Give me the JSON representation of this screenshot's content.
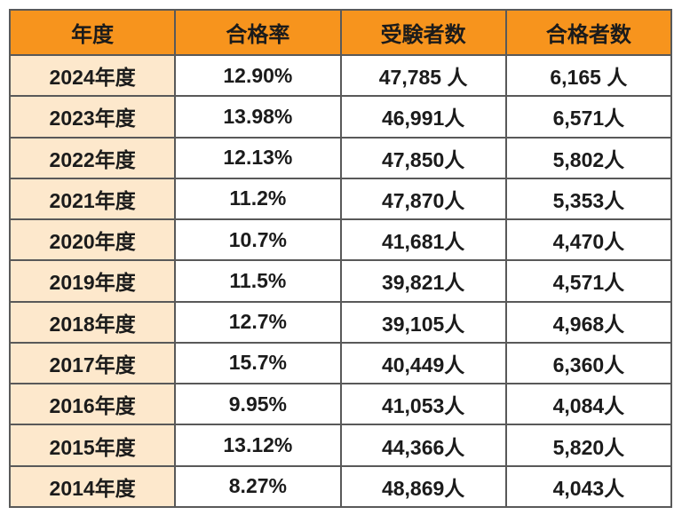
{
  "table": {
    "headers": [
      "年度",
      "合格率",
      "受験者数",
      "合格者数"
    ],
    "rows": [
      [
        "2024年度",
        "12.90%",
        "47,785 人",
        "6,165 人"
      ],
      [
        "2023年度",
        "13.98%",
        "46,991人",
        "6,571人"
      ],
      [
        "2022年度",
        "12.13%",
        "47,850人",
        "5,802人"
      ],
      [
        "2021年度",
        "11.2%",
        "47,870人",
        "5,353人"
      ],
      [
        "2020年度",
        "10.7%",
        "41,681人",
        "4,470人"
      ],
      [
        "2019年度",
        "11.5%",
        "39,821人",
        "4,571人"
      ],
      [
        "2018年度",
        "12.7%",
        "39,105人",
        "4,968人"
      ],
      [
        "2017年度",
        "15.7%",
        "40,449人",
        "6,360人"
      ],
      [
        "2016年度",
        "9.95%",
        "41,053人",
        "4,084人"
      ],
      [
        "2015年度",
        "13.12%",
        "44,366人",
        "5,820人"
      ],
      [
        "2014年度",
        "8.27%",
        "48,869人",
        "4,043人"
      ]
    ]
  },
  "colors": {
    "header_bg": "#F7941D",
    "year_column_bg": "#FDE8CC",
    "border": "#595959",
    "text": "#1B1B1B",
    "page_bg": "#FFFFFF"
  },
  "chart_data": {
    "type": "table",
    "title": "",
    "columns": [
      "年度",
      "合格率",
      "受験者数",
      "合格者数"
    ],
    "years": [
      "2024年度",
      "2023年度",
      "2022年度",
      "2021年度",
      "2020年度",
      "2019年度",
      "2018年度",
      "2017年度",
      "2016年度",
      "2015年度",
      "2014年度"
    ],
    "pass_rate_percent": [
      12.9,
      13.98,
      12.13,
      11.2,
      10.7,
      11.5,
      12.7,
      15.7,
      9.95,
      13.12,
      8.27
    ],
    "examinees": [
      47785,
      46991,
      47850,
      47870,
      41681,
      39821,
      39105,
      40449,
      41053,
      44366,
      48869
    ],
    "passers": [
      6165,
      6571,
      5802,
      5353,
      4470,
      4571,
      4968,
      6360,
      4084,
      5820,
      4043
    ]
  }
}
